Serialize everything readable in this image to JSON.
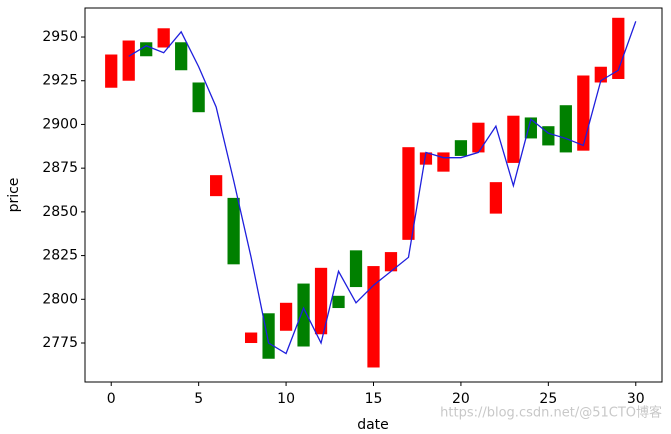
{
  "chart_data": {
    "type": "bar-line",
    "x_label": "date",
    "y_label": "price",
    "annotation": "https://blog.csdn.net/@51CTO博客",
    "xlim": [
      -1.5,
      31.5
    ],
    "xticks": [
      0,
      5,
      10,
      15,
      20,
      25,
      30
    ],
    "ylim": [
      2752.7,
      2966.6
    ],
    "yticks": [
      2775,
      2800,
      2825,
      2850,
      2875,
      2900,
      2925,
      2950
    ],
    "bars": {
      "x": [
        0,
        1,
        2,
        3,
        4,
        5,
        6,
        7,
        8,
        9,
        10,
        11,
        12,
        13,
        14,
        15,
        16,
        17,
        18,
        19,
        20,
        21,
        22,
        23,
        24,
        25,
        26,
        27,
        28,
        29
      ],
      "top": [
        2940,
        2948,
        2947,
        2955,
        2947,
        2924,
        2871,
        2858,
        2781,
        2792,
        2798,
        2809,
        2818,
        2802,
        2828,
        2819,
        2827,
        2887,
        2884,
        2884,
        2891,
        2901,
        2867,
        2905,
        2904,
        2899,
        2911,
        2928,
        2933,
        2961
      ],
      "bottom": [
        2921,
        2925,
        2939,
        2944,
        2931,
        2907,
        2859,
        2820,
        2775,
        2766,
        2782,
        2773,
        2780,
        2795,
        2807,
        2761,
        2816,
        2834,
        2877,
        2873,
        2882,
        2884,
        2849,
        2878,
        2892,
        2888,
        2884,
        2885,
        2924,
        2926
      ],
      "colors": [
        "red",
        "red",
        "green",
        "red",
        "green",
        "green",
        "red",
        "green",
        "red",
        "green",
        "red",
        "green",
        "red",
        "green",
        "green",
        "red",
        "red",
        "red",
        "red",
        "red",
        "green",
        "red",
        "red",
        "red",
        "green",
        "green",
        "green",
        "red",
        "red",
        "red"
      ]
    },
    "line": {
      "color": "#1f1fdd",
      "x": [
        1,
        2,
        3,
        4,
        5,
        6,
        7,
        8,
        9,
        10,
        11,
        12,
        13,
        14,
        15,
        16,
        17,
        18,
        19,
        20,
        21,
        22,
        23,
        24,
        25,
        26,
        27,
        28,
        29,
        30
      ],
      "values": [
        2939,
        2945,
        2941,
        2953,
        2933,
        2910,
        2868,
        2824,
        2775,
        2769,
        2795,
        2775,
        2816,
        2798,
        2808,
        2816,
        2824,
        2884,
        2881,
        2881,
        2884,
        2899,
        2865,
        2903,
        2895,
        2892,
        2888,
        2925,
        2931,
        2959
      ]
    }
  }
}
